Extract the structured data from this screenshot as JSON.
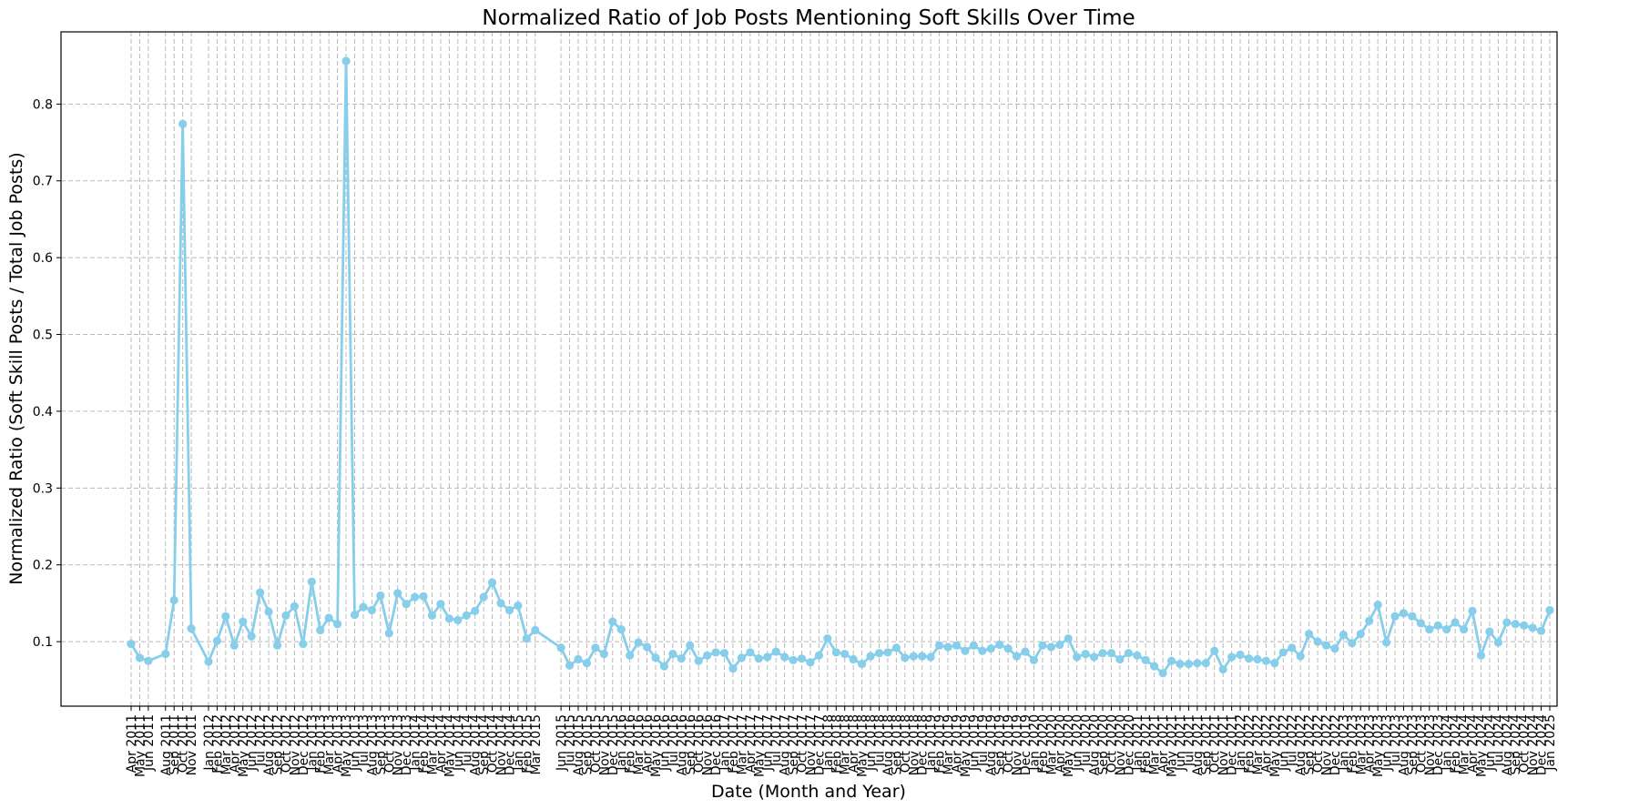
{
  "chart_data": {
    "type": "line",
    "title": "Normalized Ratio of Job Posts Mentioning Soft Skills Over Time",
    "xlabel": "Date (Month and Year)",
    "ylabel": "Normalized Ratio (Soft Skill Posts / Total Job Posts)",
    "ylim": [
      0.016,
      0.894
    ],
    "yticks": [
      "0.1",
      "0.2",
      "0.3",
      "0.4",
      "0.5",
      "0.6",
      "0.7",
      "0.8"
    ],
    "grid": true,
    "color": "#87CEEB",
    "x": [
      "Apr 2011",
      "May 2011",
      "Jun 2011",
      "Aug 2011",
      "Sep 2011",
      "Oct 2011",
      "Nov 2011",
      "Jan 2012",
      "Feb 2012",
      "Mar 2012",
      "Apr 2012",
      "May 2012",
      "Jun 2012",
      "Jul 2012",
      "Aug 2012",
      "Sep 2012",
      "Oct 2012",
      "Nov 2012",
      "Dec 2012",
      "Jan 2013",
      "Feb 2013",
      "Mar 2013",
      "Apr 2013",
      "May 2013",
      "Jun 2013",
      "Jul 2013",
      "Aug 2013",
      "Sep 2013",
      "Oct 2013",
      "Nov 2013",
      "Dec 2013",
      "Jan 2014",
      "Feb 2014",
      "Mar 2014",
      "Apr 2014",
      "May 2014",
      "Jun 2014",
      "Jul 2014",
      "Aug 2014",
      "Sep 2014",
      "Oct 2014",
      "Nov 2014",
      "Dec 2014",
      "Jan 2015",
      "Feb 2015",
      "Mar 2015",
      "Jun 2015",
      "Jul 2015",
      "Aug 2015",
      "Sep 2015",
      "Oct 2015",
      "Nov 2015",
      "Dec 2015",
      "Jan 2016",
      "Feb 2016",
      "Mar 2016",
      "Apr 2016",
      "May 2016",
      "Jun 2016",
      "Jul 2016",
      "Aug 2016",
      "Sep 2016",
      "Oct 2016",
      "Nov 2016",
      "Dec 2016",
      "Jan 2017",
      "Feb 2017",
      "Mar 2017",
      "Apr 2017",
      "May 2017",
      "Jun 2017",
      "Jul 2017",
      "Aug 2017",
      "Sep 2017",
      "Oct 2017",
      "Nov 2017",
      "Dec 2017",
      "Jan 2018",
      "Feb 2018",
      "Mar 2018",
      "Apr 2018",
      "May 2018",
      "Jun 2018",
      "Jul 2018",
      "Aug 2018",
      "Sep 2018",
      "Oct 2018",
      "Nov 2018",
      "Dec 2018",
      "Jan 2019",
      "Feb 2019",
      "Mar 2019",
      "Apr 2019",
      "May 2019",
      "Jun 2019",
      "Jul 2019",
      "Aug 2019",
      "Sep 2019",
      "Oct 2019",
      "Nov 2019",
      "Dec 2019",
      "Jan 2020",
      "Feb 2020",
      "Mar 2020",
      "Apr 2020",
      "May 2020",
      "Jun 2020",
      "Jul 2020",
      "Aug 2020",
      "Sep 2020",
      "Oct 2020",
      "Nov 2020",
      "Dec 2020",
      "Jan 2021",
      "Feb 2021",
      "Mar 2021",
      "Apr 2021",
      "May 2021",
      "Jun 2021",
      "Jul 2021",
      "Aug 2021",
      "Sep 2021",
      "Oct 2021",
      "Nov 2021",
      "Dec 2021",
      "Jan 2022",
      "Feb 2022",
      "Mar 2022",
      "Apr 2022",
      "May 2022",
      "Jun 2022",
      "Jul 2022",
      "Aug 2022",
      "Sep 2022",
      "Oct 2022",
      "Nov 2022",
      "Dec 2022",
      "Jan 2023",
      "Feb 2023",
      "Mar 2023",
      "Apr 2023",
      "May 2023",
      "Jun 2023",
      "Jul 2023",
      "Aug 2023",
      "Sep 2023",
      "Oct 2023",
      "Nov 2023",
      "Dec 2023",
      "Jan 2024",
      "Feb 2024",
      "Mar 2024",
      "Apr 2024",
      "May 2024",
      "Jun 2024",
      "Jul 2024",
      "Aug 2024",
      "Sep 2024",
      "Oct 2024",
      "Nov 2024",
      "Dec 2024",
      "Jan 2025"
    ],
    "values": [
      0.097,
      0.079,
      0.075,
      0.084,
      0.154,
      0.774,
      0.117,
      0.074,
      0.101,
      0.133,
      0.095,
      0.126,
      0.107,
      0.164,
      0.139,
      0.095,
      0.134,
      0.146,
      0.097,
      0.178,
      0.115,
      0.131,
      0.123,
      0.856,
      0.135,
      0.145,
      0.141,
      0.16,
      0.111,
      0.163,
      0.149,
      0.158,
      0.159,
      0.134,
      0.149,
      0.13,
      0.128,
      0.134,
      0.14,
      0.158,
      0.177,
      0.15,
      0.141,
      0.147,
      0.104,
      0.115,
      0.092,
      0.069,
      0.077,
      0.072,
      0.092,
      0.084,
      0.126,
      0.116,
      0.082,
      0.099,
      0.093,
      0.079,
      0.068,
      0.084,
      0.078,
      0.095,
      0.075,
      0.082,
      0.086,
      0.085,
      0.065,
      0.079,
      0.086,
      0.078,
      0.08,
      0.087,
      0.08,
      0.076,
      0.078,
      0.073,
      0.082,
      0.104,
      0.086,
      0.084,
      0.077,
      0.071,
      0.081,
      0.085,
      0.086,
      0.092,
      0.079,
      0.081,
      0.081,
      0.08,
      0.095,
      0.093,
      0.095,
      0.088,
      0.095,
      0.088,
      0.091,
      0.096,
      0.091,
      0.081,
      0.087,
      0.076,
      0.095,
      0.093,
      0.096,
      0.104,
      0.08,
      0.084,
      0.08,
      0.085,
      0.085,
      0.077,
      0.085,
      0.082,
      0.076,
      0.068,
      0.059,
      0.075,
      0.071,
      0.071,
      0.072,
      0.072,
      0.088,
      0.064,
      0.08,
      0.083,
      0.078,
      0.077,
      0.075,
      0.072,
      0.086,
      0.092,
      0.081,
      0.11,
      0.1,
      0.095,
      0.091,
      0.109,
      0.098,
      0.11,
      0.127,
      0.148,
      0.099,
      0.133,
      0.137,
      0.133,
      0.124,
      0.116,
      0.121,
      0.116,
      0.125,
      0.116,
      0.14,
      0.082,
      0.113,
      0.099,
      0.125,
      0.123,
      0.121,
      0.118,
      0.114,
      0.141
    ]
  }
}
